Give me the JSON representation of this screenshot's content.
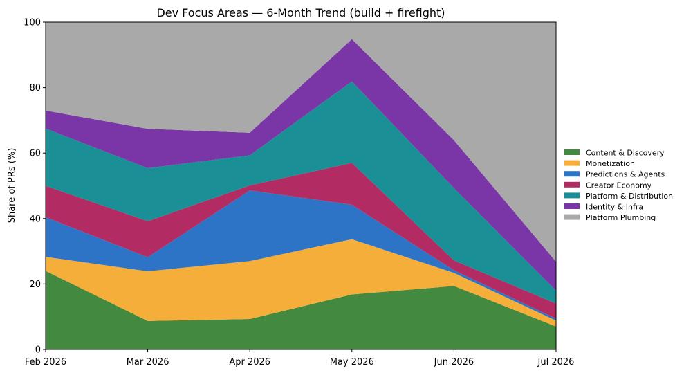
{
  "chart_data": {
    "type": "area",
    "stacked": true,
    "title": "Dev Focus Areas — 6-Month Trend (build + firefight)",
    "xlabel": "",
    "ylabel": "Share of PRs (%)",
    "ylim": [
      0,
      100
    ],
    "yticks": [
      "0",
      "20",
      "40",
      "60",
      "80",
      "100"
    ],
    "categories": [
      "Feb 2026",
      "Mar 2026",
      "Apr 2026",
      "May 2026",
      "Jun 2026",
      "Jul 2026"
    ],
    "legend_position": "right",
    "grid": false,
    "series": [
      {
        "name": "Content & Discovery",
        "color": "#43893f",
        "values": [
          24.0,
          8.7,
          9.3,
          16.8,
          19.4,
          7.0
        ]
      },
      {
        "name": "Monetization",
        "color": "#f6ae3a",
        "values": [
          4.3,
          15.2,
          17.7,
          16.9,
          4.0,
          1.8
        ]
      },
      {
        "name": "Predictions & Agents",
        "color": "#2d74c6",
        "values": [
          12.1,
          4.3,
          21.6,
          10.5,
          0.8,
          0.6
        ]
      },
      {
        "name": "Creator Economy",
        "color": "#b32b63",
        "values": [
          9.6,
          11.0,
          1.5,
          12.8,
          3.0,
          4.6
        ]
      },
      {
        "name": "Platform & Distribution",
        "color": "#1a8f96",
        "values": [
          17.5,
          16.2,
          9.2,
          24.9,
          22.1,
          4.0
        ]
      },
      {
        "name": "Identity & Infra",
        "color": "#7a35a6",
        "values": [
          5.5,
          12.0,
          6.9,
          12.9,
          14.6,
          8.8
        ]
      },
      {
        "name": "Platform Plumbing",
        "color": "#a9a9a9",
        "values": [
          27.0,
          32.6,
          33.8,
          5.2,
          36.1,
          73.2
        ]
      }
    ]
  }
}
